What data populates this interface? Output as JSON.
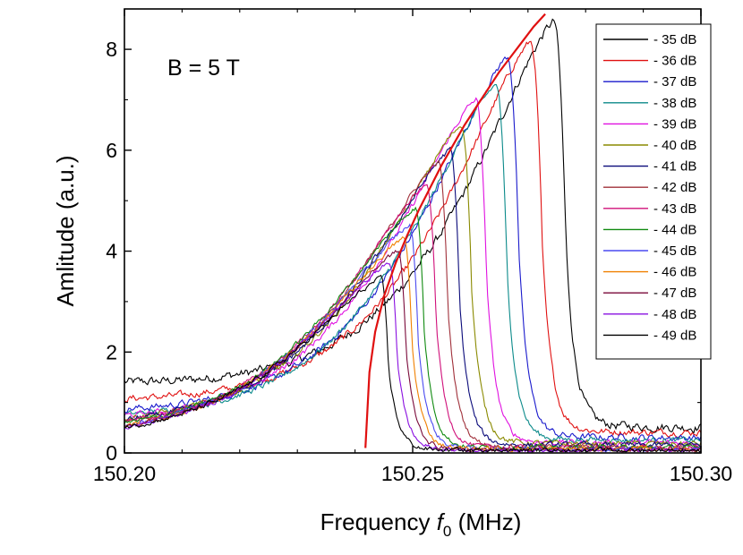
{
  "chart_data": {
    "type": "line",
    "title": "",
    "annotation": "B = 5 T",
    "xlabel_prefix": "Frequency ",
    "xlabel_symbol": "f",
    "xlabel_subscript": "0",
    "xlabel_suffix": " (MHz)",
    "ylabel": "Amlitude (a.u.)",
    "xlim": [
      150.2,
      150.3
    ],
    "ylim": [
      0,
      8.8
    ],
    "xticks": [
      150.2,
      150.25,
      150.3
    ],
    "xtick_labels": [
      "150.20",
      "150.25",
      "150.30"
    ],
    "yticks": [
      0,
      2,
      4,
      6,
      8
    ],
    "ytick_labels": [
      "0",
      "2",
      "4",
      "6",
      "8"
    ],
    "legend_position": "top-right",
    "backbone": {
      "name": "backbone fit",
      "color": "#e01010",
      "x": [
        150.2418,
        150.2425,
        150.2435,
        150.245,
        150.247,
        150.249,
        150.251,
        150.253,
        150.255,
        150.257,
        150.259,
        150.261,
        150.263,
        150.265,
        150.267,
        150.269,
        150.271,
        150.273
      ],
      "y": [
        0.1,
        1.6,
        2.4,
        3.1,
        3.75,
        4.3,
        4.8,
        5.25,
        5.7,
        6.1,
        6.5,
        6.85,
        7.2,
        7.55,
        7.85,
        8.15,
        8.45,
        8.7
      ]
    },
    "series": [
      {
        "name": "- 35 dB",
        "color": "#000000",
        "peak_x": 150.2745,
        "peak_y": 8.55,
        "base_left": 1.2,
        "base_right": 0.5,
        "noise": 0.09
      },
      {
        "name": "- 36 dB",
        "color": "#e01010",
        "peak_x": 150.2705,
        "peak_y": 8.15,
        "base_left": 0.9,
        "base_right": 0.4,
        "noise": 0.07
      },
      {
        "name": "- 37 dB",
        "color": "#1a1acc",
        "peak_x": 150.2665,
        "peak_y": 7.85,
        "base_left": 0.7,
        "base_right": 0.3,
        "noise": 0.07
      },
      {
        "name": "- 38 dB",
        "color": "#0b8a8a",
        "peak_x": 150.2645,
        "peak_y": 7.3,
        "base_left": 0.6,
        "base_right": 0.25,
        "noise": 0.06
      },
      {
        "name": "- 39 dB",
        "color": "#e010e0",
        "peak_x": 150.261,
        "peak_y": 7.0,
        "base_left": 0.55,
        "base_right": 0.2,
        "noise": 0.06
      },
      {
        "name": "- 40 dB",
        "color": "#8a8a00",
        "peak_x": 150.2585,
        "peak_y": 6.5,
        "base_left": 0.5,
        "base_right": 0.18,
        "noise": 0.06
      },
      {
        "name": "- 41 dB",
        "color": "#0a0a7a",
        "peak_x": 150.2565,
        "peak_y": 6.0,
        "base_left": 0.45,
        "base_right": 0.15,
        "noise": 0.06
      },
      {
        "name": "- 42 dB",
        "color": "#a0303a",
        "peak_x": 150.2545,
        "peak_y": 5.75,
        "base_left": 0.4,
        "base_right": 0.12,
        "noise": 0.05
      },
      {
        "name": "- 43 dB",
        "color": "#d0107a",
        "peak_x": 150.2525,
        "peak_y": 5.3,
        "base_left": 0.38,
        "base_right": 0.1,
        "noise": 0.05
      },
      {
        "name": "- 44 dB",
        "color": "#108a10",
        "peak_x": 150.2505,
        "peak_y": 4.85,
        "base_left": 0.35,
        "base_right": 0.1,
        "noise": 0.05
      },
      {
        "name": "- 45 dB",
        "color": "#4a4af0",
        "peak_x": 150.2495,
        "peak_y": 4.5,
        "base_left": 0.32,
        "base_right": 0.08,
        "noise": 0.05
      },
      {
        "name": "- 46 dB",
        "color": "#f08000",
        "peak_x": 150.2485,
        "peak_y": 4.25,
        "base_left": 0.3,
        "base_right": 0.08,
        "noise": 0.05
      },
      {
        "name": "- 47 dB",
        "color": "#7a0a3a",
        "peak_x": 150.2475,
        "peak_y": 4.0,
        "base_left": 0.28,
        "base_right": 0.06,
        "noise": 0.05
      },
      {
        "name": "- 48 dB",
        "color": "#8a10e0",
        "peak_x": 150.246,
        "peak_y": 3.75,
        "base_left": 0.26,
        "base_right": 0.05,
        "noise": 0.05
      },
      {
        "name": "- 49 dB",
        "color": "#000000",
        "peak_x": 150.2445,
        "peak_y": 3.45,
        "base_left": 0.25,
        "base_right": 0.05,
        "noise": 0.05
      }
    ]
  }
}
